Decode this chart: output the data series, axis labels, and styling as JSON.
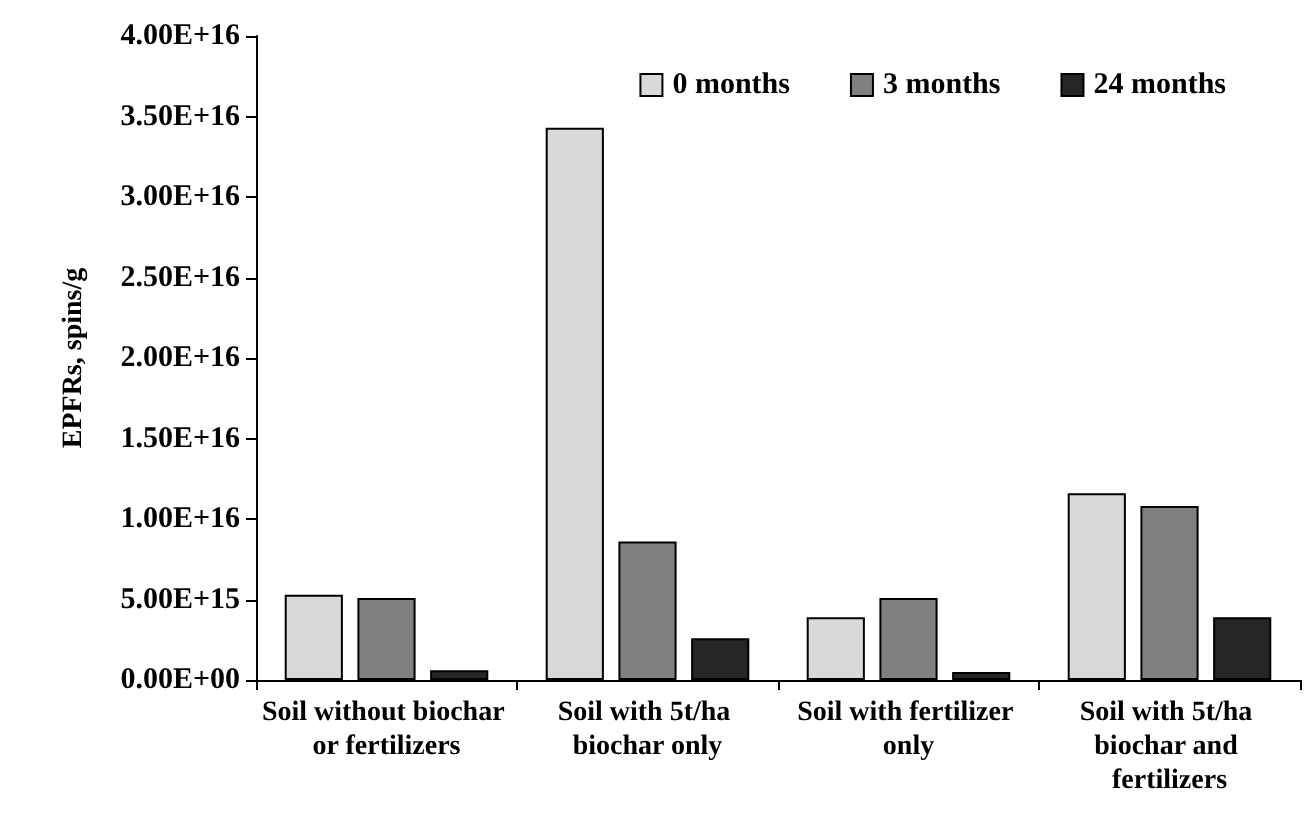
{
  "chart_data": {
    "type": "bar",
    "ylabel": "EPFRs, spins/g",
    "categories": [
      "Soil without biochar or fertilizers",
      "Soil with 5t/ha biochar only",
      "Soil with fertilizer only",
      "Soil with 5t/ha biochar and fertilizers"
    ],
    "series": [
      {
        "name": "0 months",
        "color": "#d9d9d9",
        "values": [
          5300000000000000.0,
          3.43e+16,
          3900000000000000.0,
          1.16e+16
        ]
      },
      {
        "name": "3 months",
        "color": "#808080",
        "values": [
          5100000000000000.0,
          8600000000000000.0,
          5100000000000000.0,
          1.08e+16
        ]
      },
      {
        "name": "24 months",
        "color": "#262626",
        "values": [
          600000000000000.0,
          2600000000000000.0,
          500000000000000.0,
          3900000000000000.0
        ]
      }
    ],
    "ylim": [
      0,
      4e+16
    ],
    "yticks": [
      {
        "value": 0,
        "label": "0.00E+00"
      },
      {
        "value": 5000000000000000.0,
        "label": "5.00E+15"
      },
      {
        "value": 1e+16,
        "label": "1.00E+16"
      },
      {
        "value": 1.5e+16,
        "label": "1.50E+16"
      },
      {
        "value": 2e+16,
        "label": "2.00E+16"
      },
      {
        "value": 2.5e+16,
        "label": "2.50E+16"
      },
      {
        "value": 3e+16,
        "label": "3.00E+16"
      },
      {
        "value": 3.5e+16,
        "label": "3.50E+16"
      },
      {
        "value": 4e+16,
        "label": "4.00E+16"
      }
    ],
    "grid": false,
    "legend": "top right"
  }
}
